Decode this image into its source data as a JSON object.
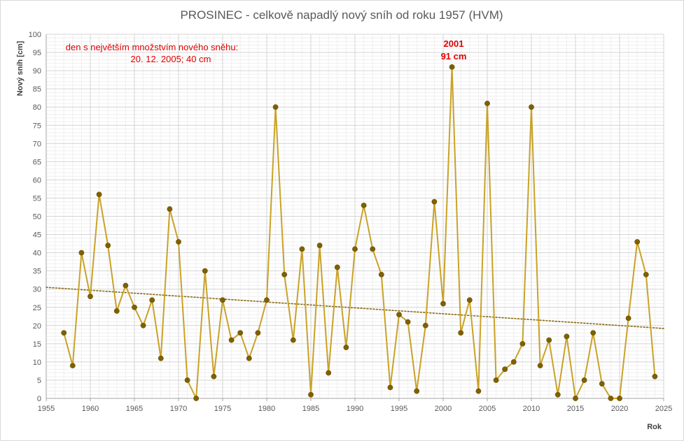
{
  "chart_data": {
    "type": "line",
    "title": "PROSINEC - celkově napadlý nový sníh od roku 1957 (HVM)",
    "xlabel": "Rok",
    "ylabel": "Nový sníh [cm]",
    "xlim": [
      1955,
      2025
    ],
    "ylim": [
      0,
      100
    ],
    "x_ticks": [
      1955,
      1960,
      1965,
      1970,
      1975,
      1980,
      1985,
      1990,
      1995,
      2000,
      2005,
      2010,
      2015,
      2020,
      2025
    ],
    "y_ticks": [
      0,
      5,
      10,
      15,
      20,
      25,
      30,
      35,
      40,
      45,
      50,
      55,
      60,
      65,
      70,
      75,
      80,
      85,
      90,
      95,
      100
    ],
    "grid": true,
    "legend": "none",
    "series_color": "#c9a227",
    "marker_color": "#7f6000",
    "trend_color": "#8b6914",
    "x": [
      1957,
      1958,
      1959,
      1960,
      1961,
      1962,
      1963,
      1964,
      1965,
      1966,
      1967,
      1968,
      1969,
      1970,
      1971,
      1972,
      1973,
      1974,
      1975,
      1976,
      1977,
      1978,
      1979,
      1980,
      1981,
      1982,
      1983,
      1984,
      1985,
      1986,
      1987,
      1988,
      1989,
      1990,
      1991,
      1992,
      1993,
      1994,
      1995,
      1996,
      1997,
      1998,
      1999,
      2000,
      2001,
      2002,
      2003,
      2004,
      2005,
      2006,
      2007,
      2008,
      2009,
      2010,
      2011,
      2012,
      2013,
      2014,
      2015,
      2016,
      2017,
      2018,
      2019,
      2020,
      2021,
      2022,
      2023,
      2024
    ],
    "values": [
      18,
      9,
      40,
      28,
      56,
      42,
      24,
      31,
      25,
      20,
      27,
      11,
      52,
      43,
      5,
      0,
      35,
      6,
      27,
      16,
      18,
      11,
      18,
      27,
      80,
      34,
      16,
      41,
      1,
      42,
      7,
      36,
      14,
      41,
      53,
      41,
      34,
      3,
      23,
      21,
      2,
      20,
      54,
      26,
      91,
      18,
      27,
      2,
      81,
      5,
      8,
      10,
      15,
      80,
      9,
      16,
      1,
      17,
      0,
      5,
      18,
      4,
      0,
      0,
      22,
      43,
      34,
      6
    ],
    "trendline": {
      "type": "linear",
      "x": [
        1955,
        2025
      ],
      "y": [
        30.5,
        19.2
      ]
    },
    "annotations": {
      "record_line1": "den s největším množstvím nového sněhu:",
      "record_line2": "20. 12. 2005; 40 cm",
      "peak_year": "2001",
      "peak_value": "91 cm"
    }
  }
}
